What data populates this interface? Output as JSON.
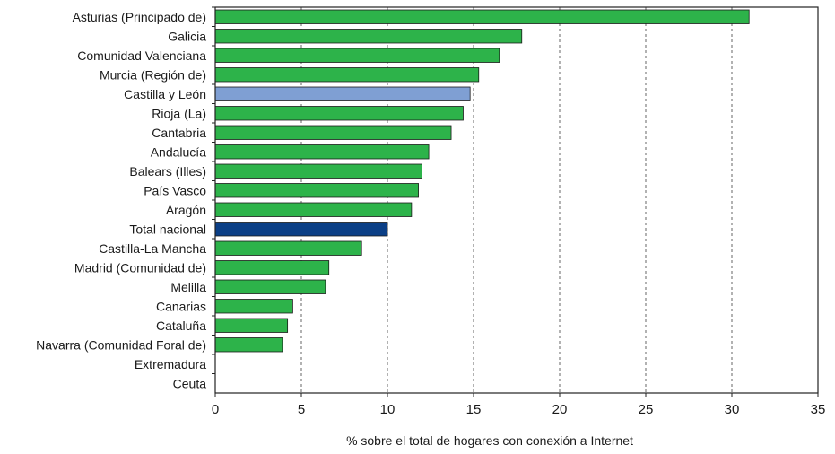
{
  "chart_data": {
    "type": "bar",
    "orientation": "horizontal",
    "categories": [
      "Asturias (Principado de)",
      "Galicia",
      "Comunidad Valenciana",
      "Murcia (Región de)",
      "Castilla y León",
      "Rioja (La)",
      "Cantabria",
      "Andalucía",
      "Balears (Illes)",
      "País Vasco",
      "Aragón",
      "Total nacional",
      "Castilla-La Mancha",
      "Madrid (Comunidad de)",
      "Melilla",
      "Canarias",
      "Cataluña",
      "Navarra (Comunidad Foral de)",
      "Extremadura",
      "Ceuta"
    ],
    "values": [
      31.0,
      17.8,
      16.5,
      15.3,
      14.8,
      14.4,
      13.7,
      12.4,
      12.0,
      11.8,
      11.4,
      10.0,
      8.5,
      6.6,
      6.4,
      4.5,
      4.2,
      3.9,
      0,
      0
    ],
    "highlight": {
      "Castilla y León": "#7f9fd3",
      "Total nacional": "#0b3f86"
    },
    "default_color": "#2db34a",
    "xlabel": "% sobre el total de hogares con conexión a Internet",
    "xlim": [
      0,
      35
    ],
    "xticks": [
      "0",
      "5",
      "10",
      "15",
      "20",
      "25",
      "30",
      "35"
    ],
    "grid": "vertical dashed"
  }
}
